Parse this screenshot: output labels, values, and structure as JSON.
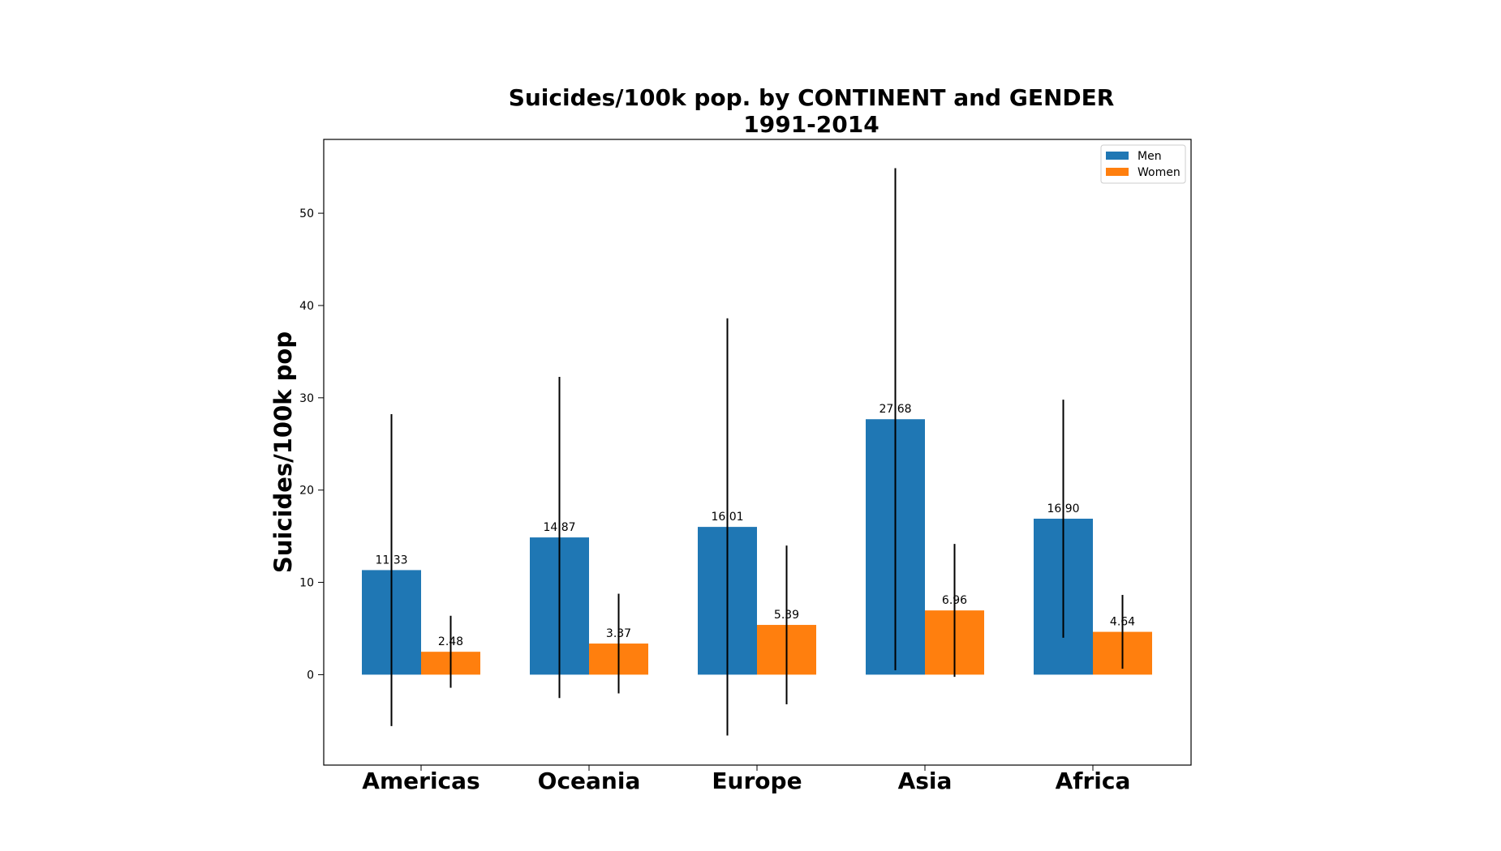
{
  "chart_data": {
    "type": "bar",
    "title": "Suicides/100k pop. by CONTINENT and GENDER",
    "subtitle": "1991-2014",
    "xlabel": "",
    "ylabel": "Suicides/100k pop",
    "categories": [
      "Americas",
      "Oceania",
      "Europe",
      "Asia",
      "Africa"
    ],
    "series": [
      {
        "name": "Men",
        "color": "#1f77b4",
        "values": [
          11.33,
          14.87,
          16.01,
          27.68,
          16.9
        ],
        "value_labels": [
          "11.33",
          "14.87",
          "16.01",
          "27.68",
          "16.90"
        ],
        "error": [
          16.9,
          17.4,
          22.6,
          27.2,
          12.9
        ]
      },
      {
        "name": "Women",
        "color": "#ff7f0e",
        "values": [
          2.48,
          3.37,
          5.39,
          6.96,
          4.64
        ],
        "value_labels": [
          "2.48",
          "3.37",
          "5.39",
          "6.96",
          "4.64"
        ],
        "error": [
          3.9,
          5.4,
          8.6,
          7.2,
          4.0
        ]
      }
    ],
    "ylim": [
      -9.8,
      58.0
    ],
    "yticks": [
      0,
      10,
      20,
      30,
      40,
      50
    ],
    "ytick_labels": [
      "0",
      "10",
      "20",
      "30",
      "40",
      "50"
    ],
    "grid": false,
    "legend_position": "top-right"
  }
}
